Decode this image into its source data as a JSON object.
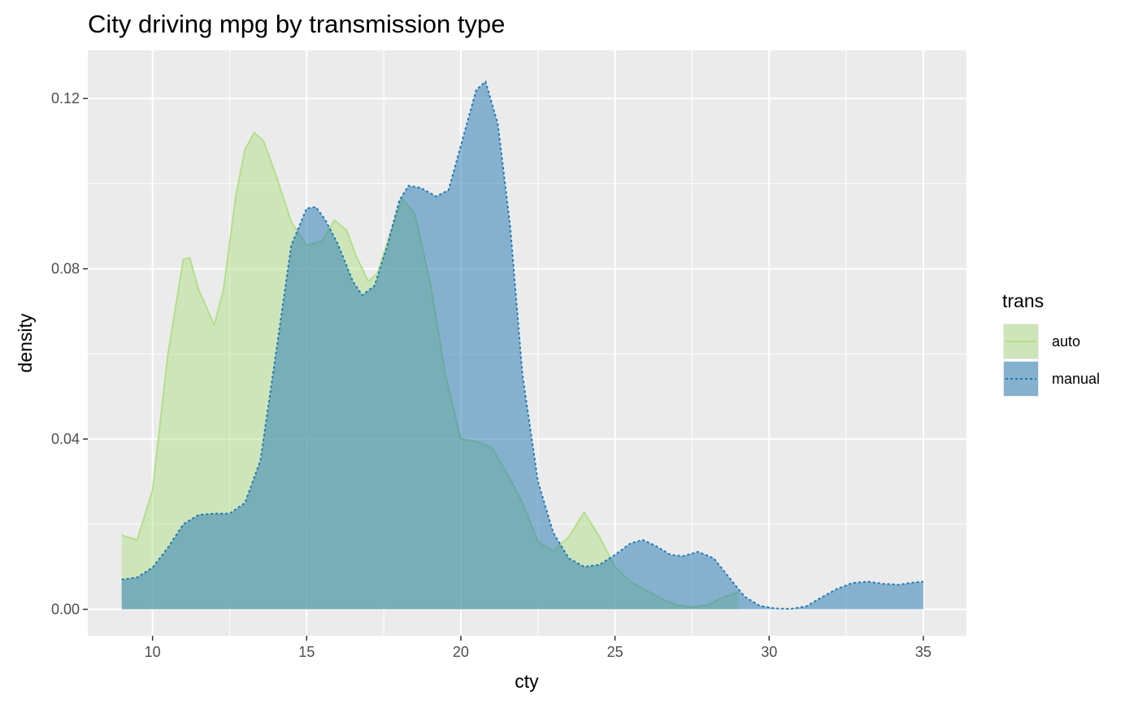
{
  "chart_data": {
    "type": "area",
    "title": "City driving mpg by transmission type",
    "xlabel": "cty",
    "ylabel": "density",
    "xlim": [
      7.9,
      36.4
    ],
    "ylim": [
      -0.0062,
      0.1313
    ],
    "x_ticks": [
      10,
      15,
      20,
      25,
      30,
      35
    ],
    "x_tick_labels": [
      "10",
      "15",
      "20",
      "25",
      "30",
      "35"
    ],
    "y_ticks": [
      0,
      0.04,
      0.08,
      0.12
    ],
    "y_tick_labels": [
      "0.00",
      "0.04",
      "0.08",
      "0.12"
    ],
    "grid": true,
    "legend": {
      "title": "trans",
      "position": "right"
    },
    "series": [
      {
        "name": "auto",
        "fill": "#b2df8a",
        "line": "#b2df8a",
        "linestyle": "solid",
        "points": [
          [
            9.0,
            0.0174
          ],
          [
            9.5,
            0.0163
          ],
          [
            10.0,
            0.028
          ],
          [
            10.5,
            0.06
          ],
          [
            11.0,
            0.0822
          ],
          [
            11.2,
            0.0826
          ],
          [
            11.5,
            0.075
          ],
          [
            12.0,
            0.0668
          ],
          [
            12.3,
            0.075
          ],
          [
            12.7,
            0.097
          ],
          [
            13.0,
            0.108
          ],
          [
            13.3,
            0.112
          ],
          [
            13.6,
            0.11
          ],
          [
            14.0,
            0.102
          ],
          [
            14.5,
            0.091
          ],
          [
            15.0,
            0.0855
          ],
          [
            15.5,
            0.0865
          ],
          [
            15.9,
            0.0914
          ],
          [
            16.3,
            0.089
          ],
          [
            16.6,
            0.083
          ],
          [
            17.0,
            0.077
          ],
          [
            17.3,
            0.079
          ],
          [
            17.7,
            0.088
          ],
          [
            18.1,
            0.0965
          ],
          [
            18.5,
            0.093
          ],
          [
            19.0,
            0.077
          ],
          [
            19.5,
            0.055
          ],
          [
            20.0,
            0.04
          ],
          [
            20.5,
            0.0395
          ],
          [
            21.0,
            0.038
          ],
          [
            21.5,
            0.032
          ],
          [
            22.0,
            0.025
          ],
          [
            22.5,
            0.016
          ],
          [
            23.0,
            0.0137
          ],
          [
            23.5,
            0.017
          ],
          [
            24.0,
            0.0228
          ],
          [
            24.5,
            0.017
          ],
          [
            25.0,
            0.01
          ],
          [
            25.5,
            0.0065
          ],
          [
            26.0,
            0.0045
          ],
          [
            26.5,
            0.0025
          ],
          [
            27.0,
            0.001
          ],
          [
            27.5,
            0.0005
          ],
          [
            28.0,
            0.001
          ],
          [
            28.5,
            0.0028
          ],
          [
            29.0,
            0.004
          ]
        ]
      },
      {
        "name": "manual",
        "fill": "#1f78b4",
        "line": "#1f78b4",
        "linestyle": "dotted",
        "points": [
          [
            9.0,
            0.007
          ],
          [
            9.5,
            0.0075
          ],
          [
            10.0,
            0.0098
          ],
          [
            10.5,
            0.0145
          ],
          [
            11.0,
            0.02
          ],
          [
            11.5,
            0.0222
          ],
          [
            12.0,
            0.0225
          ],
          [
            12.5,
            0.0225
          ],
          [
            13.0,
            0.025
          ],
          [
            13.5,
            0.035
          ],
          [
            14.0,
            0.06
          ],
          [
            14.5,
            0.0855
          ],
          [
            15.0,
            0.0942
          ],
          [
            15.3,
            0.0945
          ],
          [
            15.6,
            0.0915
          ],
          [
            16.0,
            0.086
          ],
          [
            16.5,
            0.077
          ],
          [
            16.8,
            0.0738
          ],
          [
            17.2,
            0.076
          ],
          [
            17.6,
            0.085
          ],
          [
            18.0,
            0.096
          ],
          [
            18.3,
            0.0995
          ],
          [
            18.7,
            0.099
          ],
          [
            19.2,
            0.097
          ],
          [
            19.6,
            0.0985
          ],
          [
            20.0,
            0.109
          ],
          [
            20.5,
            0.122
          ],
          [
            20.8,
            0.124
          ],
          [
            21.2,
            0.114
          ],
          [
            21.6,
            0.09
          ],
          [
            22.0,
            0.055
          ],
          [
            22.5,
            0.03
          ],
          [
            23.0,
            0.018
          ],
          [
            23.5,
            0.012
          ],
          [
            24.0,
            0.01
          ],
          [
            24.5,
            0.0105
          ],
          [
            25.0,
            0.0128
          ],
          [
            25.5,
            0.0155
          ],
          [
            25.9,
            0.0163
          ],
          [
            26.3,
            0.015
          ],
          [
            26.8,
            0.0128
          ],
          [
            27.2,
            0.0125
          ],
          [
            27.7,
            0.0135
          ],
          [
            28.2,
            0.012
          ],
          [
            28.7,
            0.0075
          ],
          [
            29.2,
            0.003
          ],
          [
            29.7,
            0.0008
          ],
          [
            30.2,
            0.0002
          ],
          [
            30.7,
            0.0001
          ],
          [
            31.2,
            0.0007
          ],
          [
            31.7,
            0.0028
          ],
          [
            32.2,
            0.0048
          ],
          [
            32.7,
            0.0062
          ],
          [
            33.2,
            0.0065
          ],
          [
            33.7,
            0.006
          ],
          [
            34.2,
            0.0058
          ],
          [
            34.7,
            0.0063
          ],
          [
            35.0,
            0.0065
          ]
        ]
      }
    ]
  }
}
